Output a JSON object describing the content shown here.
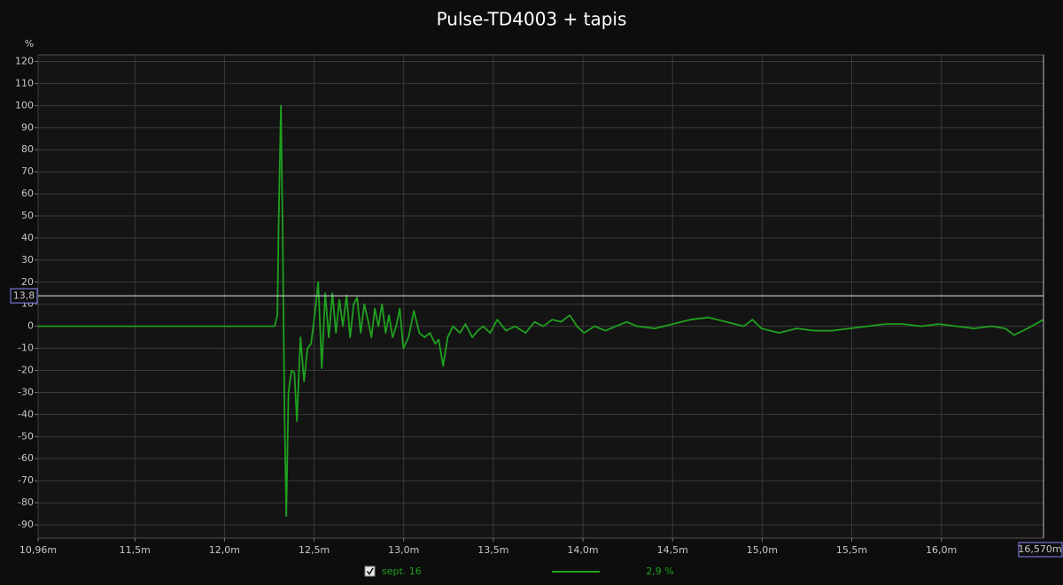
{
  "chart_data": {
    "type": "line",
    "title": "Pulse-TD4003 + tapis",
    "y_label": "%",
    "xlim": [
      10.96,
      16.57
    ],
    "ylim": [
      -96,
      123
    ],
    "xticks": [
      {
        "value": 10.96,
        "label": "10,96m"
      },
      {
        "value": 11.5,
        "label": "11,5m"
      },
      {
        "value": 12.0,
        "label": "12,0m"
      },
      {
        "value": 12.5,
        "label": "12,5m"
      },
      {
        "value": 13.0,
        "label": "13,0m"
      },
      {
        "value": 13.5,
        "label": "13,5m"
      },
      {
        "value": 14.0,
        "label": "14,0m"
      },
      {
        "value": 14.5,
        "label": "14,5m"
      },
      {
        "value": 15.0,
        "label": "15,0m"
      },
      {
        "value": 15.5,
        "label": "15,5m"
      },
      {
        "value": 16.0,
        "label": "16,0m"
      }
    ],
    "yticks": [
      120,
      110,
      100,
      90,
      80,
      70,
      60,
      50,
      40,
      30,
      20,
      10,
      0,
      -10,
      -20,
      -30,
      -40,
      -50,
      -60,
      -70,
      -80,
      -90
    ],
    "grid": true,
    "y_cursor": {
      "value": 13.8,
      "label": "13,8"
    },
    "x_cursor": {
      "value": 16.57,
      "label": "16,570m"
    },
    "x": [
      10.96,
      12.28,
      12.295,
      12.303,
      12.315,
      12.325,
      12.335,
      12.345,
      12.357,
      12.374,
      12.39,
      12.404,
      12.424,
      12.444,
      12.463,
      12.483,
      12.503,
      12.523,
      12.543,
      12.562,
      12.582,
      12.602,
      12.622,
      12.641,
      12.661,
      12.681,
      12.701,
      12.721,
      12.74,
      12.76,
      12.78,
      12.8,
      12.82,
      12.839,
      12.859,
      12.879,
      12.899,
      12.918,
      12.938,
      12.958,
      12.978,
      12.998,
      13.027,
      13.057,
      13.087,
      13.116,
      13.146,
      13.176,
      13.195,
      13.22,
      13.245,
      13.275,
      13.314,
      13.344,
      13.383,
      13.413,
      13.443,
      13.482,
      13.522,
      13.571,
      13.621,
      13.68,
      13.73,
      13.779,
      13.828,
      13.878,
      13.927,
      13.967,
      14.006,
      14.066,
      14.125,
      14.184,
      14.244,
      14.303,
      14.402,
      14.501,
      14.6,
      14.699,
      14.798,
      14.897,
      14.946,
      14.996,
      15.094,
      15.193,
      15.292,
      15.391,
      15.49,
      15.589,
      15.688,
      15.787,
      15.886,
      15.985,
      16.084,
      16.183,
      16.282,
      16.356,
      16.406,
      16.48,
      16.57
    ],
    "series": [
      {
        "name": "sept. 16",
        "color": "#1fa01f",
        "legend_value": "2,9 %",
        "values": [
          0,
          0,
          5,
          50,
          100,
          40,
          -40,
          -86,
          -30,
          -20,
          -21,
          -43,
          -5,
          -25,
          -10,
          -8,
          5,
          20,
          -19,
          15,
          -5,
          15,
          -3,
          12,
          0,
          14,
          -5,
          10,
          13,
          -3,
          10,
          3,
          -5,
          8,
          0,
          10,
          -3,
          5,
          -5,
          0,
          8,
          -10,
          -5,
          7,
          -3,
          -5,
          -3,
          -8,
          -6,
          -18,
          -5,
          0,
          -3,
          1,
          -5,
          -2,
          0,
          -3,
          3,
          -2,
          0,
          -3,
          2,
          0,
          3,
          2,
          5,
          0,
          -3,
          0,
          -2,
          0,
          2,
          0,
          -1,
          1,
          3,
          4,
          2,
          0,
          3,
          -1,
          -3,
          -1,
          -2,
          -2,
          -1,
          0,
          1,
          1,
          0,
          1,
          0,
          -1,
          0,
          -1,
          -4,
          -1,
          3
        ]
      }
    ]
  }
}
